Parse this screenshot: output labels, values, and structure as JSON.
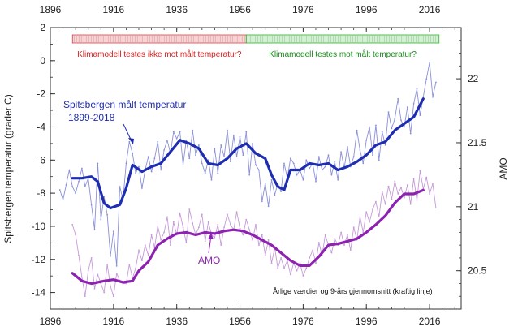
{
  "chart_data": {
    "type": "line",
    "xlim": [
      1896,
      2026
    ],
    "x_ticks": [
      1896,
      1916,
      1936,
      1956,
      1976,
      1996,
      2016
    ],
    "left_axis": {
      "label": "Spitsbergen temperatur (grader C)",
      "ylim": [
        -15,
        2
      ],
      "ticks": [
        2,
        0,
        -2,
        -4,
        -6,
        -8,
        -10,
        -12,
        -14
      ]
    },
    "right_axis": {
      "label": "AMO",
      "ylim": [
        20.2,
        22.4
      ],
      "ticks": [
        22,
        21.5,
        21,
        20.5
      ]
    },
    "banners": [
      {
        "text": "Klimamodell testes ikke mot målt temperatur?",
        "x_start": 1903,
        "x_end": 1958,
        "color": "#e8a0a0",
        "text_color": "#d42020"
      },
      {
        "text": "Klimamodell testes mot målt temperatur?",
        "x_start": 1958,
        "x_end": 2019,
        "color": "#a6d8a6",
        "text_color": "#1a8a1a"
      }
    ],
    "annotations": {
      "temp_label_line1": "Spitsbergen målt temperatur",
      "temp_label_line2": "1899-2018",
      "amo_label": "AMO",
      "footer": "Årlige værdier og 9-års gjennomsnitt (kraftig linje)"
    },
    "series": [
      {
        "name": "Spitsbergen målt temperatur",
        "axis": "left",
        "style": "smoothed",
        "color": "#1f2db0",
        "x": [
          1903,
          1906,
          1909,
          1911,
          1913,
          1915,
          1918,
          1920,
          1922,
          1925,
          1928,
          1931,
          1934,
          1937,
          1940,
          1943,
          1946,
          1949,
          1952,
          1955,
          1958,
          1961,
          1964,
          1966,
          1968,
          1970,
          1972,
          1975,
          1978,
          1981,
          1984,
          1987,
          1990,
          1993,
          1996,
          1999,
          2002,
          2005,
          2008,
          2011,
          2014
        ],
        "y": [
          -7.1,
          -7.1,
          -7.0,
          -7.3,
          -8.6,
          -8.9,
          -8.7,
          -7.7,
          -6.3,
          -6.7,
          -6.4,
          -6.2,
          -5.5,
          -4.8,
          -5.0,
          -5.3,
          -6.2,
          -6.3,
          -5.9,
          -5.3,
          -5.0,
          -5.6,
          -5.9,
          -6.9,
          -7.6,
          -7.8,
          -6.6,
          -6.6,
          -6.2,
          -6.3,
          -6.2,
          -6.6,
          -6.4,
          -6.1,
          -5.7,
          -5.1,
          -4.9,
          -4.2,
          -3.8,
          -3.4,
          -2.3
        ]
      },
      {
        "name": "AMO",
        "axis": "right",
        "style": "smoothed",
        "color": "#8e22b0",
        "x": [
          1903,
          1906,
          1909,
          1913,
          1916,
          1919,
          1922,
          1924,
          1927,
          1930,
          1933,
          1936,
          1939,
          1942,
          1945,
          1948,
          1951,
          1954,
          1957,
          1960,
          1963,
          1966,
          1969,
          1972,
          1975,
          1978,
          1981,
          1984,
          1987,
          1990,
          1993,
          1996,
          1999,
          2002,
          2005,
          2008,
          2011,
          2014
        ],
        "y": [
          20.48,
          20.42,
          20.4,
          20.42,
          20.43,
          20.41,
          20.42,
          20.5,
          20.57,
          20.7,
          20.75,
          20.79,
          20.8,
          20.78,
          20.8,
          20.79,
          20.81,
          20.82,
          20.81,
          20.78,
          20.74,
          20.7,
          20.64,
          20.58,
          20.54,
          20.54,
          20.61,
          20.7,
          20.71,
          20.73,
          20.75,
          20.8,
          20.86,
          20.93,
          21.03,
          21.1,
          21.1,
          21.13
        ]
      },
      {
        "name": "Spitsbergen målt temperatur (årlig)",
        "axis": "left",
        "style": "annual",
        "color": "#8a90d8",
        "x": [
          1899,
          1900,
          1901,
          1902,
          1903,
          1904,
          1905,
          1906,
          1907,
          1908,
          1909,
          1910,
          1911,
          1912,
          1913,
          1914,
          1915,
          1916,
          1917,
          1918,
          1919,
          1920,
          1921,
          1922,
          1923,
          1924,
          1925,
          1926,
          1927,
          1928,
          1929,
          1930,
          1931,
          1932,
          1933,
          1934,
          1935,
          1936,
          1937,
          1938,
          1939,
          1940,
          1941,
          1942,
          1943,
          1944,
          1945,
          1946,
          1947,
          1948,
          1949,
          1950,
          1951,
          1952,
          1953,
          1954,
          1955,
          1956,
          1957,
          1958,
          1959,
          1960,
          1961,
          1962,
          1963,
          1964,
          1965,
          1966,
          1967,
          1968,
          1969,
          1970,
          1971,
          1972,
          1973,
          1974,
          1975,
          1976,
          1977,
          1978,
          1979,
          1980,
          1981,
          1982,
          1983,
          1984,
          1985,
          1986,
          1987,
          1988,
          1989,
          1990,
          1991,
          1992,
          1993,
          1994,
          1995,
          1996,
          1997,
          1998,
          1999,
          2000,
          2001,
          2002,
          2003,
          2004,
          2005,
          2006,
          2007,
          2008,
          2009,
          2010,
          2011,
          2012,
          2013,
          2014,
          2015,
          2016,
          2017,
          2018
        ],
        "y": [
          -7.8,
          -8.4,
          -7.5,
          -6.6,
          -7.6,
          -8.0,
          -7.3,
          -6.5,
          -7.6,
          -7.1,
          -8.7,
          -10.2,
          -6.2,
          -9.6,
          -8.2,
          -9.3,
          -11.8,
          -10.3,
          -12.4,
          -7.6,
          -8.4,
          -6.2,
          -4.9,
          -5.6,
          -6.8,
          -6.4,
          -7.7,
          -6.6,
          -5.8,
          -6.7,
          -5.9,
          -4.9,
          -6.6,
          -5.4,
          -4.8,
          -5.6,
          -4.3,
          -4.7,
          -4.3,
          -6.3,
          -4.8,
          -5.9,
          -4.2,
          -5.7,
          -5.1,
          -6.2,
          -6.8,
          -6.0,
          -7.2,
          -5.3,
          -6.8,
          -5.1,
          -5.8,
          -4.2,
          -6.1,
          -4.5,
          -5.8,
          -4.6,
          -5.7,
          -4.3,
          -6.9,
          -5.0,
          -6.3,
          -6.6,
          -8.5,
          -7.4,
          -8.8,
          -7.2,
          -8.1,
          -7.4,
          -7.9,
          -6.2,
          -7.1,
          -5.9,
          -6.2,
          -6.9,
          -6.6,
          -7.2,
          -6.0,
          -6.5,
          -6.2,
          -7.3,
          -5.8,
          -6.6,
          -6.4,
          -5.7,
          -6.9,
          -6.1,
          -7.2,
          -5.5,
          -6.5,
          -5.2,
          -6.4,
          -5.8,
          -4.2,
          -5.4,
          -6.2,
          -4.8,
          -4.0,
          -5.7,
          -3.9,
          -6.0,
          -4.3,
          -5.1,
          -3.1,
          -4.1,
          -3.5,
          -2.3,
          -3.6,
          -4.0,
          -2.8,
          -4.4,
          -2.6,
          -1.7,
          -3.3,
          -2.2,
          -1.1,
          -0.1,
          -2.2,
          -1.3
        ]
      },
      {
        "name": "AMO (årlig)",
        "axis": "right",
        "style": "annual",
        "color": "#c59ad8",
        "x": [
          1903,
          1904,
          1905,
          1906,
          1907,
          1908,
          1909,
          1910,
          1911,
          1912,
          1913,
          1914,
          1915,
          1916,
          1917,
          1918,
          1919,
          1920,
          1921,
          1922,
          1923,
          1924,
          1925,
          1926,
          1927,
          1928,
          1929,
          1930,
          1931,
          1932,
          1933,
          1934,
          1935,
          1936,
          1937,
          1938,
          1939,
          1940,
          1941,
          1942,
          1943,
          1944,
          1945,
          1946,
          1947,
          1948,
          1949,
          1950,
          1951,
          1952,
          1953,
          1954,
          1955,
          1956,
          1957,
          1958,
          1959,
          1960,
          1961,
          1962,
          1963,
          1964,
          1965,
          1966,
          1967,
          1968,
          1969,
          1970,
          1971,
          1972,
          1973,
          1974,
          1975,
          1976,
          1977,
          1978,
          1979,
          1980,
          1981,
          1982,
          1983,
          1984,
          1985,
          1986,
          1987,
          1988,
          1989,
          1990,
          1991,
          1992,
          1993,
          1994,
          1995,
          1996,
          1997,
          1998,
          1999,
          2000,
          2001,
          2002,
          2003,
          2004,
          2005,
          2006,
          2007,
          2008,
          2009,
          2010,
          2011,
          2012,
          2013,
          2014,
          2015,
          2016,
          2017,
          2018
        ],
        "y": [
          20.86,
          20.78,
          20.62,
          20.45,
          20.3,
          20.5,
          20.6,
          20.36,
          20.47,
          20.4,
          20.33,
          20.55,
          20.38,
          20.3,
          20.48,
          20.42,
          20.4,
          20.4,
          20.55,
          20.44,
          20.52,
          20.66,
          20.58,
          20.7,
          20.62,
          20.78,
          20.68,
          20.85,
          20.74,
          20.8,
          20.92,
          20.7,
          20.88,
          20.78,
          20.95,
          20.84,
          20.72,
          20.98,
          20.87,
          20.78,
          20.84,
          20.94,
          20.73,
          20.88,
          20.78,
          20.76,
          20.86,
          20.7,
          20.84,
          20.94,
          20.86,
          20.82,
          20.96,
          20.83,
          20.78,
          20.9,
          20.82,
          20.74,
          20.86,
          20.7,
          20.78,
          20.62,
          20.74,
          20.56,
          20.68,
          20.52,
          20.6,
          20.52,
          20.58,
          20.47,
          20.56,
          20.5,
          20.56,
          20.46,
          20.52,
          20.6,
          20.66,
          20.56,
          20.72,
          20.62,
          20.78,
          20.7,
          20.64,
          20.75,
          20.7,
          20.8,
          20.7,
          20.78,
          20.66,
          20.84,
          20.74,
          20.92,
          20.8,
          20.96,
          20.88,
          20.98,
          21.04,
          20.92,
          21.12,
          21.02,
          21.16,
          21.06,
          21.2,
          21.1,
          21.15,
          21.07,
          21.17,
          21.02,
          21.22,
          21.05,
          21.28,
          21.14,
          21.23,
          21.1,
          21.18,
          20.99
        ]
      }
    ]
  }
}
